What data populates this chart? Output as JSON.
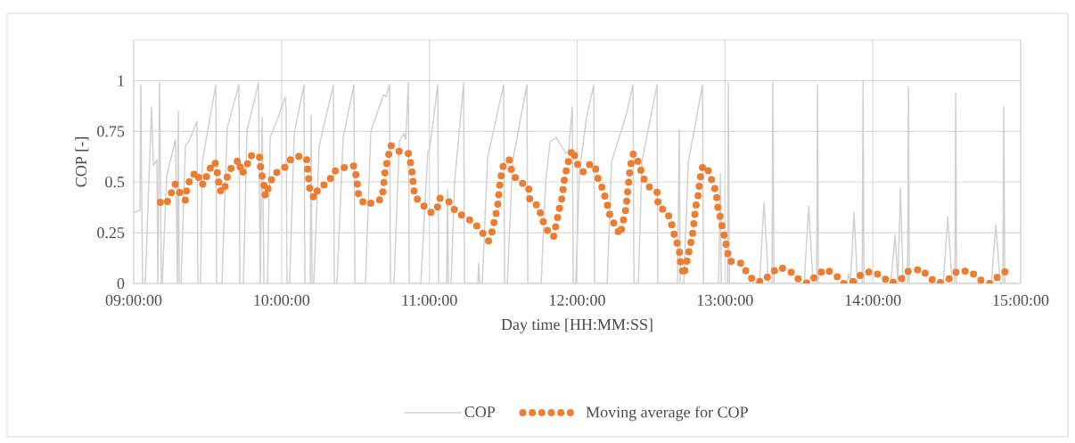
{
  "chart_data": {
    "type": "line",
    "xlabel": "Day time [HH:MM:SS]",
    "ylabel": "COP [-]",
    "xlim": [
      9,
      15
    ],
    "xticks": [
      {
        "value": 9,
        "label": "09:00:00"
      },
      {
        "value": 10,
        "label": "10:00:00"
      },
      {
        "value": 11,
        "label": "11:00:00"
      },
      {
        "value": 12,
        "label": "12:00:00"
      },
      {
        "value": 13,
        "label": "13:00:00"
      },
      {
        "value": 14,
        "label": "14:00:00"
      },
      {
        "value": 15,
        "label": "15:00:00"
      }
    ],
    "ylim": [
      0,
      1.2
    ],
    "yticks": [
      0,
      0.25,
      0.5,
      0.75,
      1
    ],
    "grid": true,
    "legend": "bottom",
    "series": [
      {
        "name": "COP",
        "color": "#d0d0d0",
        "line_style": "solid",
        "x": [
          9.0,
          9.042,
          9.048,
          9.06,
          9.078,
          9.121,
          9.133,
          9.157,
          9.163,
          9.175,
          9.187,
          9.193,
          9.223,
          9.283,
          9.296,
          9.302,
          9.308,
          9.32,
          9.35,
          9.38,
          9.428,
          9.434,
          9.452,
          9.464,
          9.555,
          9.561,
          9.597,
          9.633,
          9.712,
          9.718,
          9.742,
          9.766,
          9.844,
          9.856,
          9.869,
          9.881,
          9.905,
          9.923,
          9.977,
          10.025,
          10.031,
          10.037,
          10.055,
          10.086,
          10.152,
          10.158,
          10.194,
          10.2,
          10.206,
          10.218,
          10.255,
          10.351,
          10.357,
          10.375,
          10.417,
          10.49,
          10.496,
          10.568,
          10.604,
          10.689,
          10.707,
          10.731,
          10.737,
          10.761,
          10.797,
          10.827,
          10.84,
          10.858,
          10.864,
          10.942,
          10.99,
          11.002,
          11.057,
          11.063,
          11.117,
          11.123,
          11.129,
          11.147,
          11.171,
          11.232,
          11.238,
          11.328,
          11.334,
          11.34,
          11.358,
          11.394,
          11.503,
          11.509,
          11.527,
          11.563,
          11.66,
          11.666,
          11.756,
          11.787,
          11.817,
          11.859,
          11.925,
          11.943,
          11.967,
          11.973,
          11.991,
          12.015,
          12.064,
          12.112,
          12.118,
          12.203,
          12.233,
          12.335,
          12.378,
          12.384,
          12.414,
          12.438,
          12.54,
          12.546,
          12.679,
          12.691,
          12.697,
          12.721,
          12.752,
          12.818,
          12.848,
          12.854,
          12.957,
          12.969,
          12.975,
          13.017,
          13.023,
          13.029,
          13.234,
          13.264,
          13.294,
          13.318,
          13.324,
          13.331,
          13.536,
          13.566,
          13.596,
          13.62,
          13.626,
          13.632,
          13.825,
          13.837,
          13.849,
          13.873,
          13.897,
          13.928,
          13.934,
          13.94,
          14.121,
          14.151,
          14.169,
          14.187,
          14.205,
          14.235,
          14.241,
          14.247,
          14.477,
          14.507,
          14.537,
          14.555,
          14.561,
          14.567,
          14.802,
          14.832,
          14.862,
          14.88,
          14.886,
          14.893,
          14.971
        ],
        "values": [
          0.35,
          0.36,
          0.98,
          0,
          0,
          0.87,
          0.58,
          0.61,
          0,
          0.99,
          0,
          0,
          0.53,
          0.71,
          0,
          0.85,
          0,
          0,
          0.68,
          0.71,
          0.8,
          0,
          0,
          0.6,
          0.98,
          0,
          0,
          0.77,
          0.98,
          0,
          0,
          0.75,
          0.99,
          0,
          0.82,
          0,
          0,
          0.72,
          0.82,
          0.92,
          0.86,
          0,
          0,
          0.74,
          0.98,
          0,
          0,
          0.83,
          0,
          0,
          0.68,
          0.98,
          0,
          0,
          0.72,
          0.98,
          0,
          0,
          0.75,
          0.93,
          0.92,
          0.98,
          0,
          0,
          0.7,
          0.74,
          0.71,
          0.99,
          0,
          0,
          0.65,
          0.66,
          0.98,
          0,
          0,
          0.46,
          0,
          0,
          0.5,
          0.99,
          0,
          0,
          0.1,
          0,
          0,
          0.62,
          0.98,
          0,
          0,
          0.6,
          0.98,
          0,
          0,
          0.5,
          0.7,
          0.72,
          0.64,
          0.66,
          0.87,
          0,
          0,
          0.55,
          0.82,
          0.98,
          0,
          0,
          0.6,
          0.84,
          0.98,
          0,
          0,
          0.6,
          0.98,
          0,
          0,
          0.76,
          0,
          0,
          0.6,
          0.86,
          0.98,
          0,
          0,
          0.54,
          0,
          0,
          0.99,
          0,
          0,
          0.4,
          0,
          0,
          0.99,
          0,
          0,
          0.38,
          0,
          0,
          0.98,
          0,
          0,
          0.05,
          0,
          0.35,
          0,
          0,
          1.0,
          0,
          0,
          0.24,
          0,
          0.47,
          0,
          0,
          0.97,
          0,
          0,
          0.33,
          0,
          0,
          0.94,
          0,
          0,
          0.29,
          0,
          0,
          0.87,
          0,
          0
        ]
      },
      {
        "name": "Moving average for COP",
        "color": "#ed7d31",
        "line_style": "dotted",
        "x": [
          9.18,
          9.22,
          9.25,
          9.28,
          9.31,
          9.35,
          9.36,
          9.39,
          9.43,
          9.45,
          9.48,
          9.5,
          9.55,
          9.57,
          9.58,
          9.61,
          9.63,
          9.66,
          9.71,
          9.73,
          9.76,
          9.79,
          9.85,
          9.86,
          9.88,
          9.89,
          9.92,
          9.95,
          10.02,
          10.07,
          10.14,
          10.17,
          10.18,
          10.19,
          10.22,
          10.25,
          10.32,
          10.35,
          10.41,
          10.49,
          10.51,
          10.52,
          10.56,
          10.64,
          10.68,
          10.69,
          10.7,
          10.72,
          10.74,
          10.8,
          10.86,
          10.88,
          10.89,
          10.9,
          10.95,
          11.01,
          11.05,
          11.07,
          11.14,
          11.18,
          11.24,
          11.3,
          11.35,
          11.4,
          11.42,
          11.44,
          11.46,
          11.47,
          11.48,
          11.5,
          11.54,
          11.56,
          11.61,
          11.67,
          11.68,
          11.74,
          11.76,
          11.8,
          11.84,
          11.86,
          11.88,
          11.9,
          11.91,
          11.93,
          11.95,
          11.97,
          12.0,
          12.04,
          12.09,
          12.12,
          12.14,
          12.17,
          12.2,
          12.22,
          12.26,
          12.29,
          12.31,
          12.33,
          12.34,
          12.35,
          12.36,
          12.38,
          12.42,
          12.44,
          12.48,
          12.54,
          12.55,
          12.61,
          12.64,
          12.66,
          12.69,
          12.7,
          12.72,
          12.74,
          12.76,
          12.78,
          12.79,
          12.8,
          12.82,
          12.83,
          12.85,
          12.88,
          12.91,
          12.94,
          12.95,
          12.97,
          12.99,
          13.01,
          13.03,
          13.11,
          13.15,
          13.2,
          13.26,
          13.31,
          13.37,
          13.44,
          13.5,
          13.56,
          13.62,
          13.68,
          13.75,
          13.8,
          13.87,
          13.93,
          14.0,
          14.07,
          14.12,
          14.19,
          14.24,
          14.33,
          14.38,
          14.44,
          14.51,
          14.57,
          14.66,
          14.72,
          14.79,
          14.84,
          14.9
        ],
        "values": [
          0.4,
          0.39,
          0.44,
          0.49,
          0.45,
          0.41,
          0.47,
          0.53,
          0.55,
          0.49,
          0.49,
          0.55,
          0.6,
          0.53,
          0.46,
          0.45,
          0.52,
          0.57,
          0.61,
          0.54,
          0.57,
          0.63,
          0.63,
          0.56,
          0.49,
          0.43,
          0.49,
          0.54,
          0.57,
          0.62,
          0.63,
          0.61,
          0.54,
          0.47,
          0.42,
          0.47,
          0.5,
          0.55,
          0.57,
          0.58,
          0.51,
          0.44,
          0.39,
          0.4,
          0.42,
          0.48,
          0.55,
          0.62,
          0.68,
          0.65,
          0.64,
          0.57,
          0.5,
          0.43,
          0.39,
          0.35,
          0.36,
          0.42,
          0.4,
          0.35,
          0.33,
          0.3,
          0.26,
          0.21,
          0.24,
          0.31,
          0.37,
          0.44,
          0.51,
          0.58,
          0.61,
          0.54,
          0.5,
          0.48,
          0.41,
          0.38,
          0.32,
          0.26,
          0.23,
          0.3,
          0.37,
          0.43,
          0.5,
          0.57,
          0.63,
          0.66,
          0.59,
          0.55,
          0.59,
          0.58,
          0.52,
          0.47,
          0.4,
          0.34,
          0.28,
          0.24,
          0.3,
          0.37,
          0.44,
          0.51,
          0.58,
          0.64,
          0.59,
          0.53,
          0.48,
          0.45,
          0.38,
          0.35,
          0.29,
          0.23,
          0.17,
          0.1,
          0.04,
          0.1,
          0.17,
          0.24,
          0.3,
          0.37,
          0.44,
          0.51,
          0.58,
          0.57,
          0.51,
          0.45,
          0.38,
          0.32,
          0.25,
          0.18,
          0.11,
          0.1,
          0.05,
          0.01,
          0.01,
          0.05,
          0.08,
          0.06,
          0.02,
          0,
          0.04,
          0.07,
          0.04,
          0,
          0.01,
          0.05,
          0.06,
          0.03,
          0,
          0.02,
          0.06,
          0.07,
          0.03,
          0,
          0.02,
          0.06,
          0.06,
          0.02,
          0,
          0.03,
          0.06
        ]
      }
    ]
  }
}
